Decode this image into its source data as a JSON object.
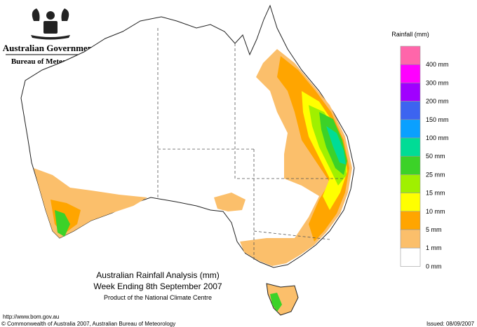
{
  "header": {
    "government": "Australian Government",
    "bureau": "Bureau of Meteorology"
  },
  "legend": {
    "title": "Rainfall (mm)",
    "items": [
      {
        "label": "400 mm",
        "color": "#ff66aa"
      },
      {
        "label": "300 mm",
        "color": "#ff00ff"
      },
      {
        "label": "200 mm",
        "color": "#a000ff"
      },
      {
        "label": "150 mm",
        "color": "#3c64f0"
      },
      {
        "label": "100 mm",
        "color": "#0aa0ff"
      },
      {
        "label": "50 mm",
        "color": "#00dc96"
      },
      {
        "label": "25 mm",
        "color": "#3cd228"
      },
      {
        "label": "15 mm",
        "color": "#a0f000"
      },
      {
        "label": "10 mm",
        "color": "#ffff00"
      },
      {
        "label": "5 mm",
        "color": "#ffa500"
      },
      {
        "label": "1 mm",
        "color": "#fbbf6b"
      },
      {
        "label": "0 mm",
        "color": "#ffffff"
      }
    ]
  },
  "caption": {
    "title": "Australian Rainfall Analysis (mm)",
    "subtitle": "Week Ending 8th September 2007",
    "credit": "Product of the National Climate Centre"
  },
  "footer": {
    "url": "http://www.bom.gov.au",
    "copyright": "© Commonwealth of Australia 2007, Australian Bureau of Meteorology",
    "issued": "Issued: 08/09/2007"
  }
}
